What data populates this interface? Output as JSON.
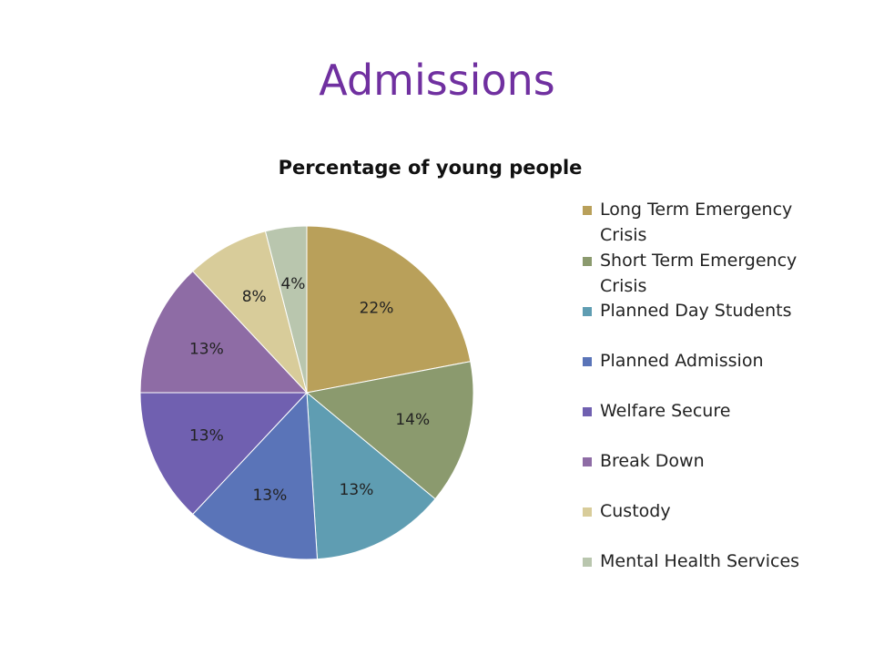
{
  "slide": {
    "title": "Admissions",
    "title_color": "#7030A0"
  },
  "chart_data": {
    "type": "pie",
    "title": "Percentage of young people",
    "categories": [
      "Long Term Emergency Crisis",
      "Short Term Emergency Crisis",
      "Planned Day Students",
      "Planned Admission",
      "Welfare Secure",
      "Break Down",
      "Custody",
      "Mental Health Services"
    ],
    "values": [
      22,
      14,
      13,
      13,
      13,
      13,
      8,
      4
    ],
    "data_labels": [
      "22%",
      "14%",
      "13%",
      "13%",
      "13%",
      "13%",
      "8%",
      "4%"
    ],
    "colors": [
      "#B9A05A",
      "#8B9A6E",
      "#5F9DB2",
      "#5A74B8",
      "#7060B0",
      "#8E6CA5",
      "#D8CC9A",
      "#B9C6AE"
    ],
    "legend_position": "right"
  }
}
